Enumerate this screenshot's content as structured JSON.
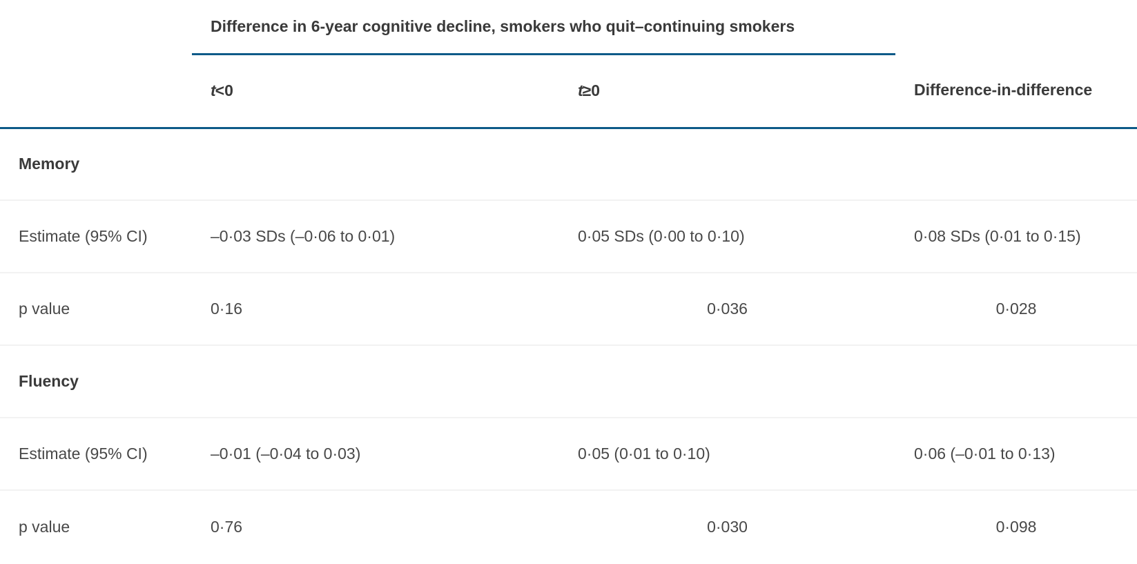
{
  "table": {
    "spanner_heading": "Difference in 6-year cognitive decline, smokers who quit–continuing smokers",
    "col_headers": {
      "t_symbol": "t",
      "lt_zero": "<0",
      "ge_zero": "≥0",
      "did": "Difference-in-difference"
    },
    "rows": [
      {
        "label": "Memory",
        "t_lt_0": "",
        "t_ge_0": "",
        "did": ""
      },
      {
        "label": "Estimate (95% CI)",
        "t_lt_0": "–0·03 SDs (–0·06 to 0·01)",
        "t_ge_0": "0·05 SDs (0·00 to 0·10)",
        "did": "0·08 SDs (0·01 to 0·15)"
      },
      {
        "label": "p value",
        "t_lt_0": "0·16",
        "t_ge_0": "0·036",
        "did": "0·028"
      },
      {
        "label": "Fluency",
        "t_lt_0": "",
        "t_ge_0": "",
        "did": ""
      },
      {
        "label": "Estimate (95% CI)",
        "t_lt_0": "–0·01 (–0·04 to 0·03)",
        "t_ge_0": "0·05 (0·01 to 0·10)",
        "did": "0·06 (–0·01 to 0·13)"
      },
      {
        "label": "p value",
        "t_lt_0": "0·76",
        "t_ge_0": "0·030",
        "did": "0·098"
      }
    ],
    "colors": {
      "rule_accent": "#0d5a88",
      "rule_light": "#f2f2f2",
      "text_bold": "#3a3a3a",
      "text_regular": "#484848"
    }
  }
}
